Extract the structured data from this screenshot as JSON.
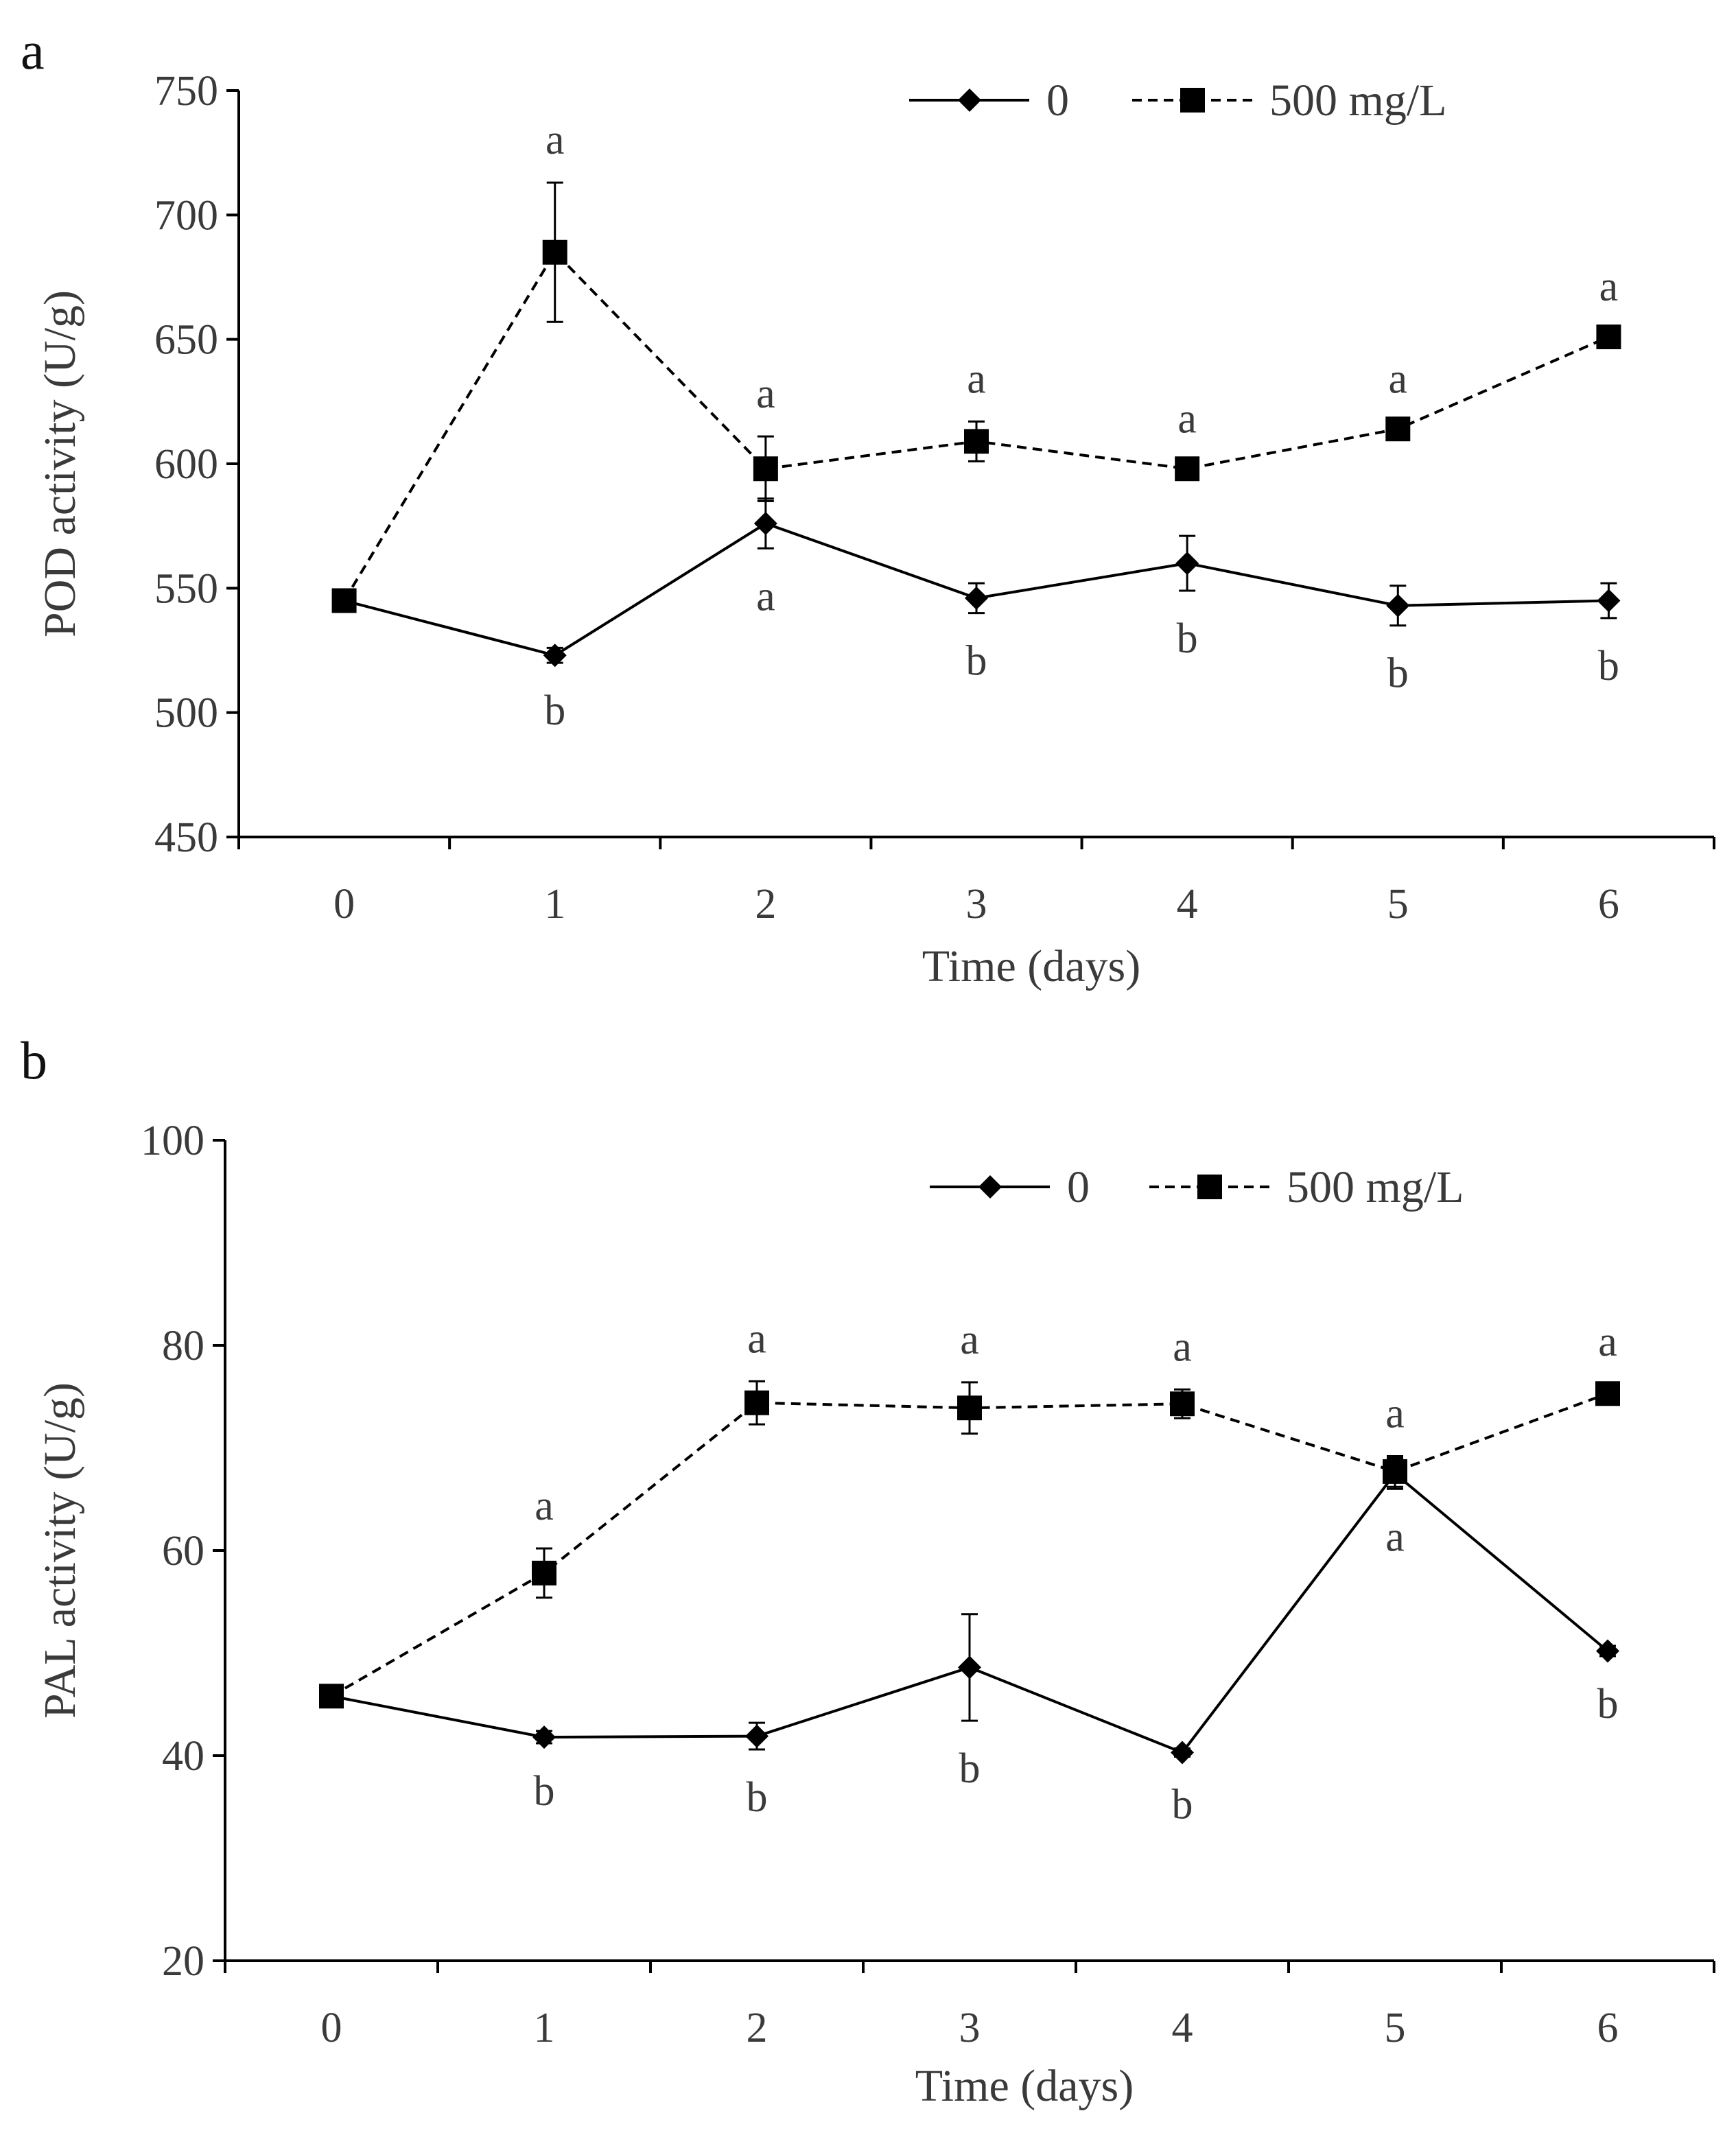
{
  "chart_data": [
    {
      "type": "line",
      "panel_label": "a",
      "xlabel": "Time (days)",
      "ylabel": "POD activity (U/g)",
      "x": [
        0,
        1,
        2,
        3,
        4,
        5,
        6
      ],
      "ylim": [
        450,
        750
      ],
      "yticks": [
        450,
        500,
        550,
        600,
        650,
        700,
        750
      ],
      "legend_position": "top-right",
      "grid": false,
      "series": [
        {
          "name": "0",
          "marker": "diamond",
          "line_style": "solid",
          "color": "#000000",
          "values": [
            545,
            523,
            576,
            546,
            560,
            543,
            545
          ],
          "errors": [
            3,
            3,
            10,
            6,
            11,
            8,
            7
          ],
          "letters": [
            "",
            "b",
            "a",
            "b",
            "b",
            "b",
            "b"
          ],
          "letter_position": "below"
        },
        {
          "name": "500 mg/L",
          "marker": "square",
          "line_style": "dashed",
          "color": "#000000",
          "values": [
            545,
            685,
            598,
            609,
            598,
            614,
            651
          ],
          "errors": [
            3,
            28,
            13,
            8,
            3,
            3,
            3
          ],
          "letters": [
            "",
            "a",
            "a",
            "a",
            "a",
            "a",
            "a"
          ],
          "letter_position": "above"
        }
      ]
    },
    {
      "type": "line",
      "panel_label": "b",
      "xlabel": "Time (days)",
      "ylabel": "PAL activity (U/g)",
      "x": [
        0,
        1,
        2,
        3,
        4,
        5,
        6
      ],
      "ylim": [
        20,
        100
      ],
      "yticks": [
        20,
        40,
        60,
        80,
        100
      ],
      "legend_position": "top-right",
      "grid": false,
      "series": [
        {
          "name": "0",
          "marker": "diamond",
          "line_style": "solid",
          "color": "#000000",
          "values": [
            45.8,
            41.8,
            41.9,
            48.6,
            40.3,
            67.5,
            50.2
          ],
          "errors": [
            0.6,
            0.6,
            1.3,
            5.2,
            0.4,
            1.5,
            0.5
          ],
          "letters": [
            "",
            "b",
            "b",
            "b",
            "b",
            "a",
            "b"
          ],
          "letter_position": "below"
        },
        {
          "name": "500 mg/L",
          "marker": "square",
          "line_style": "dashed",
          "color": "#000000",
          "values": [
            45.8,
            57.8,
            74.4,
            73.9,
            74.3,
            67.7,
            75.3
          ],
          "errors": [
            0.6,
            2.4,
            2.1,
            2.5,
            1.4,
            1.5,
            0.9
          ],
          "letters": [
            "",
            "a",
            "a",
            "a",
            "a",
            "a",
            "a"
          ],
          "letter_position": "above"
        }
      ]
    }
  ]
}
